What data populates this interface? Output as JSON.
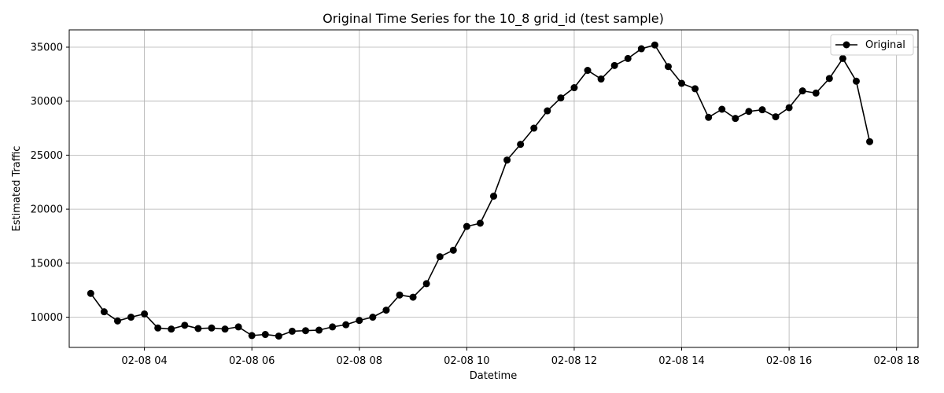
{
  "chart_data": {
    "type": "line",
    "title": "Original Time Series for the 10_8 grid_id (test sample)",
    "xlabel": "Datetime",
    "ylabel": "Estimated Traffic",
    "x_axis_unit": "hours",
    "xlim": [
      2.6,
      18.4
    ],
    "ylim": [
      7200,
      36600
    ],
    "x_ticks": [
      {
        "value": 4,
        "label": "02-08 04"
      },
      {
        "value": 6,
        "label": "02-08 06"
      },
      {
        "value": 8,
        "label": "02-08 08"
      },
      {
        "value": 10,
        "label": "02-08 10"
      },
      {
        "value": 12,
        "label": "02-08 12"
      },
      {
        "value": 14,
        "label": "02-08 14"
      },
      {
        "value": 16,
        "label": "02-08 16"
      },
      {
        "value": 18,
        "label": "02-08 18"
      }
    ],
    "y_ticks": [
      {
        "value": 10000,
        "label": "10000"
      },
      {
        "value": 15000,
        "label": "15000"
      },
      {
        "value": 20000,
        "label": "20000"
      },
      {
        "value": 25000,
        "label": "25000"
      },
      {
        "value": 30000,
        "label": "30000"
      },
      {
        "value": 35000,
        "label": "35000"
      }
    ],
    "grid": true,
    "legend_position": "top-right",
    "series": [
      {
        "name": "Original",
        "color": "#000000",
        "marker": "circle",
        "points": [
          {
            "x": 3.0,
            "y": 12200
          },
          {
            "x": 3.25,
            "y": 10500
          },
          {
            "x": 3.5,
            "y": 9650
          },
          {
            "x": 3.75,
            "y": 10000
          },
          {
            "x": 4.0,
            "y": 10300
          },
          {
            "x": 4.25,
            "y": 9000
          },
          {
            "x": 4.5,
            "y": 8900
          },
          {
            "x": 4.75,
            "y": 9250
          },
          {
            "x": 5.0,
            "y": 8950
          },
          {
            "x": 5.25,
            "y": 9000
          },
          {
            "x": 5.5,
            "y": 8900
          },
          {
            "x": 5.75,
            "y": 9100
          },
          {
            "x": 6.0,
            "y": 8300
          },
          {
            "x": 6.25,
            "y": 8400
          },
          {
            "x": 6.5,
            "y": 8250
          },
          {
            "x": 6.75,
            "y": 8700
          },
          {
            "x": 7.0,
            "y": 8750
          },
          {
            "x": 7.25,
            "y": 8800
          },
          {
            "x": 7.5,
            "y": 9100
          },
          {
            "x": 7.75,
            "y": 9300
          },
          {
            "x": 8.0,
            "y": 9700
          },
          {
            "x": 8.25,
            "y": 10000
          },
          {
            "x": 8.5,
            "y": 10650
          },
          {
            "x": 8.75,
            "y": 12050
          },
          {
            "x": 9.0,
            "y": 11850
          },
          {
            "x": 9.25,
            "y": 13100
          },
          {
            "x": 9.5,
            "y": 15600
          },
          {
            "x": 9.75,
            "y": 16200
          },
          {
            "x": 10.0,
            "y": 18400
          },
          {
            "x": 10.25,
            "y": 18700
          },
          {
            "x": 10.5,
            "y": 21200
          },
          {
            "x": 10.75,
            "y": 24550
          },
          {
            "x": 11.0,
            "y": 26000
          },
          {
            "x": 11.25,
            "y": 27500
          },
          {
            "x": 11.5,
            "y": 29100
          },
          {
            "x": 11.75,
            "y": 30300
          },
          {
            "x": 12.0,
            "y": 31250
          },
          {
            "x": 12.25,
            "y": 32850
          },
          {
            "x": 12.5,
            "y": 32050
          },
          {
            "x": 12.75,
            "y": 33300
          },
          {
            "x": 13.0,
            "y": 33950
          },
          {
            "x": 13.25,
            "y": 34850
          },
          {
            "x": 13.5,
            "y": 35200
          },
          {
            "x": 13.75,
            "y": 33200
          },
          {
            "x": 14.0,
            "y": 31650
          },
          {
            "x": 14.25,
            "y": 31150
          },
          {
            "x": 14.5,
            "y": 28500
          },
          {
            "x": 14.75,
            "y": 29250
          },
          {
            "x": 15.0,
            "y": 28400
          },
          {
            "x": 15.25,
            "y": 29050
          },
          {
            "x": 15.5,
            "y": 29200
          },
          {
            "x": 15.75,
            "y": 28550
          },
          {
            "x": 16.0,
            "y": 29400
          },
          {
            "x": 16.25,
            "y": 30950
          },
          {
            "x": 16.5,
            "y": 30750
          },
          {
            "x": 16.75,
            "y": 32100
          },
          {
            "x": 17.0,
            "y": 33950
          },
          {
            "x": 17.25,
            "y": 31850
          },
          {
            "x": 17.5,
            "y": 26250
          }
        ]
      }
    ]
  }
}
